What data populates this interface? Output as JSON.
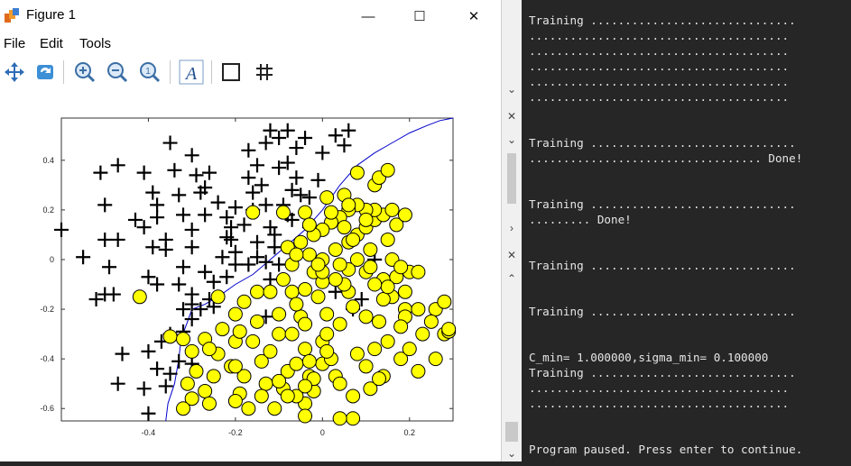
{
  "window": {
    "title": "Figure 1",
    "minimize": "—",
    "maximize": "☐",
    "close": "✕"
  },
  "menu": {
    "file": "File",
    "edit": "Edit",
    "tools": "Tools"
  },
  "toolbar": {
    "items": [
      {
        "name": "pan-icon",
        "glyph": "✥"
      },
      {
        "name": "rotate-icon",
        "glyph": "⟳"
      },
      {
        "name": "zoom-in-icon",
        "glyph": "+"
      },
      {
        "name": "zoom-out-icon",
        "glyph": "−"
      },
      {
        "name": "zoom-reset-icon",
        "glyph": "1"
      },
      {
        "name": "insert-text-icon",
        "glyph": "A"
      },
      {
        "name": "axes-box-icon",
        "glyph": "□"
      },
      {
        "name": "grid-icon",
        "glyph": "#"
      }
    ]
  },
  "chart_data": {
    "type": "scatter",
    "title": "",
    "xlabel": "",
    "ylabel": "",
    "xlim": [
      -0.6,
      0.3
    ],
    "ylim": [
      -0.65,
      0.57
    ],
    "xticks": [
      "-0.4",
      "-0.2",
      "0",
      "0.2"
    ],
    "xtick_values": [
      -0.4,
      -0.2,
      0,
      0.2
    ],
    "yticks": [
      "0.4",
      "0.2",
      "0",
      "-0.2",
      "-0.4",
      "-0.6"
    ],
    "ytick_values": [
      0.4,
      0.2,
      0,
      -0.2,
      -0.4,
      -0.6
    ],
    "grid": false,
    "series": [
      {
        "marker": "plus",
        "color": "#000000",
        "points": [
          [
            -0.6,
            0.12
          ],
          [
            -0.55,
            0.01
          ],
          [
            -0.51,
            0.35
          ],
          [
            -0.5,
            0.22
          ],
          [
            -0.5,
            0.08
          ],
          [
            -0.47,
            0.08
          ],
          [
            -0.49,
            -0.03
          ],
          [
            -0.52,
            -0.16
          ],
          [
            -0.5,
            -0.14
          ],
          [
            -0.48,
            -0.14
          ],
          [
            -0.41,
            0.35
          ],
          [
            -0.39,
            0.27
          ],
          [
            -0.38,
            0.22
          ],
          [
            -0.38,
            0.17
          ],
          [
            -0.36,
            0.08
          ],
          [
            -0.41,
            0.13
          ],
          [
            -0.43,
            0.16
          ],
          [
            -0.34,
            0.36
          ],
          [
            -0.35,
            0.47
          ],
          [
            -0.33,
            0.26
          ],
          [
            -0.32,
            0.18
          ],
          [
            -0.3,
            0.12
          ],
          [
            -0.36,
            0.04
          ],
          [
            -0.39,
            0.05
          ],
          [
            -0.4,
            -0.07
          ],
          [
            -0.38,
            -0.1
          ],
          [
            -0.33,
            -0.1
          ],
          [
            -0.32,
            -0.03
          ],
          [
            -0.3,
            0.05
          ],
          [
            -0.27,
            0.18
          ],
          [
            -0.27,
            0.29
          ],
          [
            -0.29,
            0.34
          ],
          [
            -0.3,
            0.42
          ],
          [
            -0.26,
            0.35
          ],
          [
            -0.24,
            0.23
          ],
          [
            -0.22,
            0.17
          ],
          [
            -0.21,
            0.08
          ],
          [
            -0.2,
            0.03
          ],
          [
            -0.23,
            0.01
          ],
          [
            -0.22,
            -0.07
          ],
          [
            -0.25,
            -0.09
          ],
          [
            -0.27,
            -0.05
          ],
          [
            -0.26,
            -0.16
          ],
          [
            -0.25,
            -0.19
          ],
          [
            -0.28,
            -0.2
          ],
          [
            -0.3,
            -0.24
          ],
          [
            -0.32,
            -0.29
          ],
          [
            -0.35,
            -0.3
          ],
          [
            -0.37,
            -0.33
          ],
          [
            -0.4,
            -0.37
          ],
          [
            -0.38,
            -0.44
          ],
          [
            -0.35,
            -0.46
          ],
          [
            -0.33,
            -0.41
          ],
          [
            -0.3,
            -0.42
          ],
          [
            -0.46,
            -0.38
          ],
          [
            -0.47,
            -0.5
          ],
          [
            -0.41,
            -0.52
          ],
          [
            -0.36,
            -0.51
          ],
          [
            -0.4,
            -0.62
          ],
          [
            -0.17,
            0.33
          ],
          [
            -0.17,
            0.44
          ],
          [
            -0.15,
            0.38
          ],
          [
            -0.16,
            0.27
          ],
          [
            -0.14,
            0.3
          ],
          [
            -0.13,
            0.22
          ],
          [
            -0.12,
            0.13
          ],
          [
            -0.11,
            0.1
          ],
          [
            -0.11,
            0.05
          ],
          [
            -0.15,
            0.07
          ],
          [
            -0.18,
            0.14
          ],
          [
            -0.21,
            0.13
          ],
          [
            -0.2,
            0.21
          ],
          [
            -0.16,
            0.2
          ],
          [
            -0.1,
            0.37
          ],
          [
            -0.1,
            0.49
          ],
          [
            -0.12,
            0.52
          ],
          [
            -0.13,
            0.47
          ],
          [
            -0.08,
            0.52
          ],
          [
            -0.04,
            0.49
          ],
          [
            -0.06,
            0.45
          ],
          [
            -0.08,
            0.39
          ],
          [
            -0.06,
            0.33
          ],
          [
            -0.07,
            0.28
          ],
          [
            -0.05,
            0.26
          ],
          [
            -0.09,
            0.22
          ],
          [
            -0.08,
            0.18
          ],
          [
            -0.07,
            0.16
          ],
          [
            -0.03,
            0.13
          ],
          [
            -0.03,
            0.25
          ],
          [
            -0.01,
            0.32
          ],
          [
            0,
            0.43
          ],
          [
            0.03,
            0.5
          ],
          [
            0.06,
            0.52
          ],
          [
            0.05,
            0.46
          ],
          [
            -0.17,
            -0.02
          ],
          [
            -0.15,
            0.01
          ],
          [
            -0.13,
            -0.01
          ],
          [
            -0.1,
            -0.02
          ],
          [
            -0.12,
            -0.08
          ],
          [
            -0.13,
            -0.23
          ],
          [
            0.09,
            -0.16
          ],
          [
            0.03,
            -0.13
          ],
          [
            0.12,
            0.0
          ],
          [
            0.07,
            -0.2
          ],
          [
            -0.47,
            0.38
          ],
          [
            -0.28,
            0.27
          ],
          [
            -0.3,
            -0.14
          ],
          [
            -0.3,
            -0.18
          ],
          [
            -0.32,
            -0.2
          ],
          [
            -0.2,
            -0.02
          ],
          [
            -0.22,
            0.09
          ]
        ]
      },
      {
        "marker": "circle",
        "color": "#ffff00",
        "points": [
          [
            -0.42,
            -0.15
          ],
          [
            -0.35,
            -0.31
          ],
          [
            -0.32,
            -0.32
          ],
          [
            -0.3,
            -0.37
          ],
          [
            -0.29,
            -0.45
          ],
          [
            -0.31,
            -0.5
          ],
          [
            -0.3,
            -0.56
          ],
          [
            -0.27,
            -0.53
          ],
          [
            -0.32,
            -0.6
          ],
          [
            -0.24,
            -0.38
          ],
          [
            -0.21,
            -0.43
          ],
          [
            -0.2,
            -0.33
          ],
          [
            -0.19,
            -0.29
          ],
          [
            -0.2,
            -0.22
          ],
          [
            -0.18,
            -0.17
          ],
          [
            -0.15,
            -0.13
          ],
          [
            -0.15,
            -0.25
          ],
          [
            -0.16,
            -0.33
          ],
          [
            -0.18,
            -0.47
          ],
          [
            -0.19,
            -0.54
          ],
          [
            -0.17,
            -0.6
          ],
          [
            -0.14,
            -0.41
          ],
          [
            -0.12,
            -0.37
          ],
          [
            -0.1,
            -0.3
          ],
          [
            -0.1,
            -0.22
          ],
          [
            -0.12,
            -0.13
          ],
          [
            -0.09,
            -0.08
          ],
          [
            -0.07,
            -0.13
          ],
          [
            -0.07,
            -0.3
          ],
          [
            -0.05,
            -0.23
          ],
          [
            -0.04,
            -0.36
          ],
          [
            -0.03,
            -0.47
          ],
          [
            -0.02,
            -0.53
          ],
          [
            -0.04,
            -0.58
          ],
          [
            -0.06,
            -0.55
          ],
          [
            -0.09,
            -0.52
          ],
          [
            -0.11,
            -0.6
          ],
          [
            -0.13,
            -0.5
          ],
          [
            -0.08,
            -0.45
          ],
          [
            -0.06,
            -0.42
          ],
          [
            0.0,
            -0.42
          ],
          [
            -0.02,
            -0.48
          ],
          [
            0.02,
            -0.4
          ],
          [
            0.03,
            -0.47
          ],
          [
            0.04,
            -0.5
          ],
          [
            0.07,
            -0.55
          ],
          [
            0.1,
            -0.43
          ],
          [
            0.12,
            -0.36
          ],
          [
            0.15,
            -0.33
          ],
          [
            0.13,
            -0.25
          ],
          [
            0.1,
            -0.23
          ],
          [
            0.07,
            -0.19
          ],
          [
            0.06,
            -0.13
          ],
          [
            0.05,
            -0.1
          ],
          [
            0.03,
            -0.08
          ],
          [
            0.0,
            -0.09
          ],
          [
            -0.01,
            -0.15
          ],
          [
            0.01,
            -0.22
          ],
          [
            0.04,
            -0.26
          ],
          [
            0.0,
            -0.33
          ],
          [
            -0.04,
            -0.26
          ],
          [
            -0.06,
            -0.18
          ],
          [
            -0.04,
            -0.12
          ],
          [
            -0.02,
            -0.05
          ],
          [
            0.0,
            0.0
          ],
          [
            0.03,
            0.04
          ],
          [
            0.06,
            0.07
          ],
          [
            0.08,
            0.1
          ],
          [
            0.1,
            0.13
          ],
          [
            0.12,
            0.16
          ],
          [
            0.14,
            0.18
          ],
          [
            0.16,
            0.2
          ],
          [
            0.12,
            0.2
          ],
          [
            0.1,
            0.2
          ],
          [
            0.08,
            0.22
          ],
          [
            0.06,
            0.2
          ],
          [
            0.04,
            0.17
          ],
          [
            0.02,
            0.15
          ],
          [
            0.0,
            0.12
          ],
          [
            -0.02,
            0.1
          ],
          [
            -0.05,
            0.07
          ],
          [
            -0.08,
            0.05
          ],
          [
            -0.03,
            0.02
          ],
          [
            -0.07,
            -0.02
          ],
          [
            0.0,
            -0.05
          ],
          [
            0.08,
            0.0
          ],
          [
            0.1,
            -0.05
          ],
          [
            0.14,
            -0.08
          ],
          [
            0.17,
            -0.07
          ],
          [
            0.2,
            -0.05
          ],
          [
            0.22,
            -0.05
          ],
          [
            0.16,
            -0.15
          ],
          [
            0.19,
            -0.2
          ],
          [
            0.22,
            -0.2
          ],
          [
            0.26,
            -0.2
          ],
          [
            0.28,
            -0.17
          ],
          [
            0.25,
            -0.25
          ],
          [
            0.23,
            -0.3
          ],
          [
            0.28,
            -0.3
          ],
          [
            0.26,
            -0.4
          ],
          [
            0.22,
            -0.45
          ],
          [
            0.18,
            -0.4
          ],
          [
            0.14,
            -0.47
          ],
          [
            0.11,
            -0.52
          ],
          [
            0.07,
            -0.64
          ],
          [
            0.04,
            -0.64
          ],
          [
            -0.04,
            -0.63
          ],
          [
            0.12,
            0.3
          ],
          [
            0.13,
            0.33
          ],
          [
            0.15,
            0.36
          ],
          [
            0.08,
            0.35
          ],
          [
            0.05,
            0.26
          ],
          [
            0.01,
            0.25
          ],
          [
            -0.04,
            0.19
          ],
          [
            -0.09,
            0.19
          ],
          [
            0.16,
            0.0
          ],
          [
            0.14,
            -0.16
          ],
          [
            0.19,
            -0.23
          ],
          [
            0.11,
            -0.03
          ],
          [
            0.18,
            -0.03
          ],
          [
            0.29,
            -0.29
          ],
          [
            0.19,
            -0.13
          ],
          [
            0.01,
            -0.3
          ],
          [
            0.2,
            -0.36
          ],
          [
            0.18,
            -0.27
          ],
          [
            0.15,
            -0.11
          ],
          [
            0.12,
            -0.1
          ],
          [
            0.06,
            -0.04
          ],
          [
            0.04,
            -0.02
          ],
          [
            -0.01,
            -0.02
          ],
          [
            -0.06,
            0.02
          ],
          [
            0.11,
            0.04
          ],
          [
            0.07,
            0.08
          ],
          [
            0.05,
            0.13
          ],
          [
            0.15,
            0.08
          ],
          [
            0.17,
            0.14
          ],
          [
            0.19,
            0.18
          ],
          [
            0.1,
            0.16
          ],
          [
            0.06,
            0.22
          ],
          [
            0.02,
            0.19
          ],
          [
            -0.03,
            0.14
          ],
          [
            -0.16,
            0.19
          ],
          [
            -0.2,
            -0.43
          ],
          [
            -0.25,
            -0.47
          ],
          [
            -0.26,
            -0.58
          ],
          [
            -0.2,
            -0.57
          ],
          [
            -0.14,
            -0.55
          ],
          [
            -0.1,
            -0.49
          ],
          [
            -0.08,
            -0.55
          ],
          [
            -0.04,
            -0.51
          ],
          [
            0.08,
            -0.38
          ],
          [
            0.01,
            -0.37
          ],
          [
            -0.03,
            -0.41
          ],
          [
            0.13,
            -0.48
          ],
          [
            -0.24,
            -0.15
          ],
          [
            -0.23,
            -0.28
          ],
          [
            -0.27,
            -0.32
          ],
          [
            -0.26,
            -0.36
          ],
          [
            0.29,
            -0.28
          ]
        ]
      }
    ],
    "boundary": [
      [
        -0.36,
        -0.65
      ],
      [
        -0.355,
        -0.58
      ],
      [
        -0.34,
        -0.5
      ],
      [
        -0.33,
        -0.4
      ],
      [
        -0.325,
        -0.32
      ],
      [
        -0.31,
        -0.25
      ],
      [
        -0.3,
        -0.2
      ],
      [
        -0.27,
        -0.18
      ],
      [
        -0.24,
        -0.15
      ],
      [
        -0.2,
        -0.1
      ],
      [
        -0.16,
        -0.06
      ],
      [
        -0.12,
        0.0
      ],
      [
        -0.08,
        0.06
      ],
      [
        -0.04,
        0.12
      ],
      [
        0.0,
        0.2
      ],
      [
        0.04,
        0.3
      ],
      [
        0.08,
        0.38
      ],
      [
        0.12,
        0.43
      ],
      [
        0.16,
        0.47
      ],
      [
        0.2,
        0.51
      ],
      [
        0.24,
        0.54
      ],
      [
        0.27,
        0.56
      ],
      [
        0.3,
        0.57
      ]
    ],
    "boundary_color": "#0000cc"
  },
  "console": {
    "text": "Training ..............................\n......................................\n......................................\n......................................\n......................................\n......................................\n\n\nTraining ..............................\n.................................. Done!\n\n\nTraining ..............................\n......... Done!\n\n\nTraining ..............................\n\n\nTraining ..............................\n\n\nC_min= 1.000000,sigma_min= 0.100000\nTraining ..............................\n......................................\n......................................\n\n\nProgram paused. Press enter to continue.",
    "scroll_up": "⌄",
    "close": "✕"
  }
}
